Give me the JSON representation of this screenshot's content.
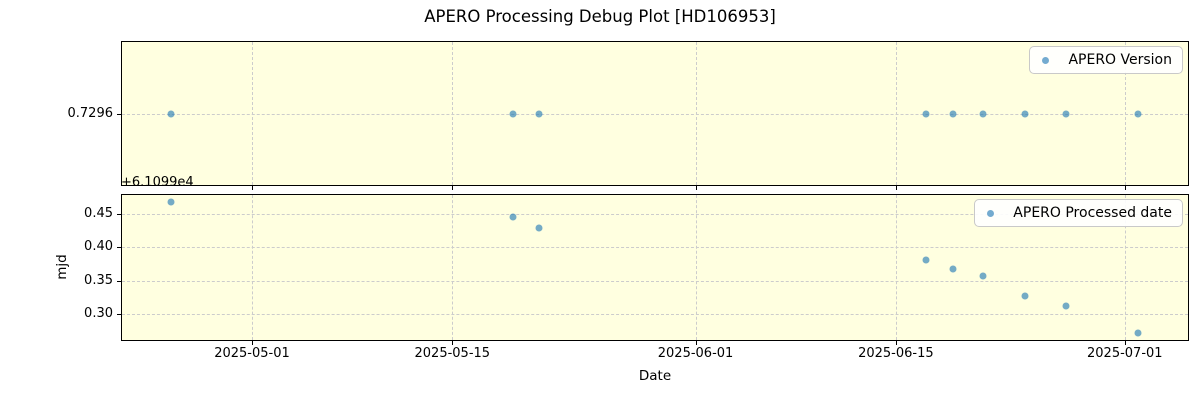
{
  "figure": {
    "title": "APERO Processing Debug Plot [HD106953]",
    "background": "#ffffff",
    "axes_background": "#ffffe0",
    "marker_color": "rgba(31,119,180,0.62)",
    "grid_color": "#cccccc",
    "spine_color": "#000000"
  },
  "chart_data": [
    {
      "type": "scatter",
      "name": "apero-version-panel",
      "legend": "APERO Version",
      "legend_position": "upper right",
      "grid": true,
      "xlim": [
        "2025-04-21T22:00",
        "2025-07-05T10:00"
      ],
      "ylim": [
        0.7246,
        0.7346
      ],
      "xticks": [
        "2025-05-01T00:00",
        "2025-05-15T00:00",
        "2025-06-01T00:00",
        "2025-06-15T00:00",
        "2025-07-01T00:00"
      ],
      "xtick_labels": [
        "2025-05-01",
        "2025-05-15",
        "2025-06-01",
        "2025-06-15",
        "2025-07-01"
      ],
      "show_xtick_labels": false,
      "yticks": [
        0.7296
      ],
      "ytick_labels": [
        "0.7296"
      ],
      "xlabel": "",
      "ylabel": "",
      "series": [
        {
          "name": "APERO Version",
          "x": [
            "2025-04-25T08:00",
            "2025-05-19T05:00",
            "2025-05-21T01:00",
            "2025-06-17T02:00",
            "2025-06-19T00:00",
            "2025-06-21T02:00",
            "2025-06-24T00:00",
            "2025-06-26T22:00",
            "2025-07-01T22:00"
          ],
          "y": [
            0.7296,
            0.7296,
            0.7296,
            0.7296,
            0.7296,
            0.7296,
            0.7296,
            0.7296,
            0.7296
          ]
        }
      ]
    },
    {
      "type": "scatter",
      "name": "apero-processed-date-panel",
      "legend": "APERO Processed date",
      "legend_position": "upper right",
      "grid": true,
      "xlim": [
        "2025-04-21T22:00",
        "2025-07-05T10:00"
      ],
      "ylim": [
        0.262,
        0.478
      ],
      "xticks": [
        "2025-05-01T00:00",
        "2025-05-15T00:00",
        "2025-06-01T00:00",
        "2025-06-15T00:00",
        "2025-07-01T00:00"
      ],
      "xtick_labels": [
        "2025-05-01",
        "2025-05-15",
        "2025-06-01",
        "2025-06-15",
        "2025-07-01"
      ],
      "show_xtick_labels": true,
      "yticks": [
        0.45,
        0.4,
        0.35,
        0.3
      ],
      "ytick_labels": [
        "0.45",
        "0.40",
        "0.35",
        "0.30"
      ],
      "xlabel": "Date",
      "ylabel": "mjd",
      "y_offset_text": "+6.1099e4",
      "series": [
        {
          "name": "APERO Processed date",
          "x": [
            "2025-04-25T08:00",
            "2025-05-19T05:00",
            "2025-05-21T01:00",
            "2025-06-17T02:00",
            "2025-06-19T00:00",
            "2025-06-21T02:00",
            "2025-06-24T00:00",
            "2025-06-26T22:00",
            "2025-07-01T22:00"
          ],
          "y": [
            0.467,
            0.445,
            0.429,
            0.381,
            0.368,
            0.358,
            0.327,
            0.312,
            0.273
          ]
        }
      ]
    }
  ]
}
